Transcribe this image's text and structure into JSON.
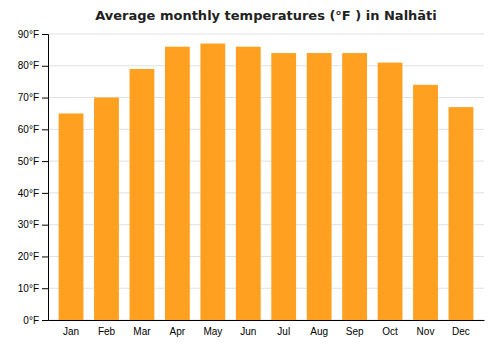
{
  "chart_data": {
    "type": "bar",
    "title": "Average monthly temperatures (°F ) in Nalhāti",
    "categories": [
      "Jan",
      "Feb",
      "Mar",
      "Apr",
      "May",
      "Jun",
      "Jul",
      "Aug",
      "Sep",
      "Oct",
      "Nov",
      "Dec"
    ],
    "values": [
      65,
      70,
      79,
      86,
      87,
      86,
      84,
      84,
      84,
      81,
      74,
      67
    ],
    "color": "#FFA020",
    "ylim": [
      0,
      90
    ],
    "yticks": [
      {
        "value": 0,
        "label": "0°F"
      },
      {
        "value": 10,
        "label": "10°F"
      },
      {
        "value": 20,
        "label": "20°F"
      },
      {
        "value": 30,
        "label": "30°F"
      },
      {
        "value": 40,
        "label": "40°F"
      },
      {
        "value": 50,
        "label": "50°F"
      },
      {
        "value": 60,
        "label": "60°F"
      },
      {
        "value": 70,
        "label": "70°F"
      },
      {
        "value": 80,
        "label": "80°F"
      },
      {
        "value": 90,
        "label": "90°F"
      }
    ],
    "grid": true
  }
}
